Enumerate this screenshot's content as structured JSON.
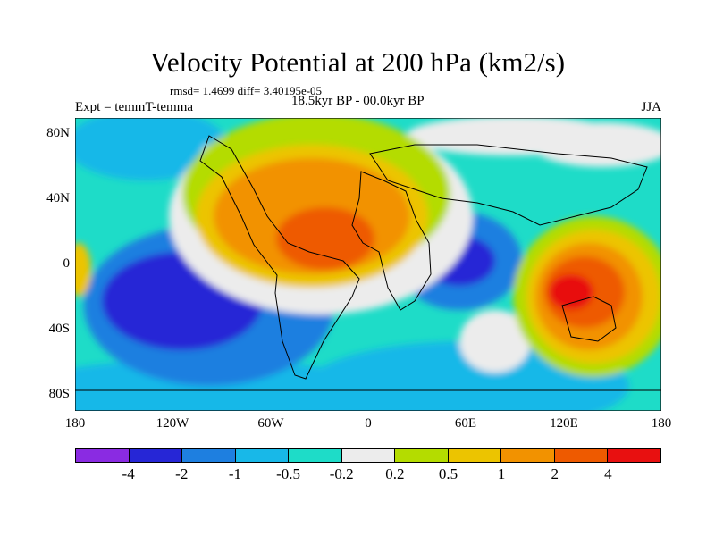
{
  "header": {
    "title": "Velocity Potential at 200 hPa (km2/s)",
    "stats": "rmsd= 1.4699  diff= 3.40195e-05",
    "left_label": "Expt = temmT-temma",
    "center_label": "18.5kyr BP - 00.0kyr BP",
    "right_label": "JJA"
  },
  "map": {
    "y_ticks": [
      "80N",
      "40N",
      "0",
      "40S",
      "80S"
    ],
    "x_ticks": [
      "180",
      "120W",
      "60W",
      "0",
      "60E",
      "120E",
      "180"
    ]
  },
  "colorbar": {
    "colors": [
      "#8a2be2",
      "#2626d6",
      "#1e7fe0",
      "#18b8e8",
      "#1edcc8",
      "#ececec",
      "#b4dc00",
      "#ecc400",
      "#f29200",
      "#ee5a00",
      "#e81010"
    ],
    "labels": [
      "-4",
      "-2",
      "-1",
      "-0.5",
      "-0.2",
      "0.2",
      "0.5",
      "1",
      "2",
      "4"
    ]
  }
}
